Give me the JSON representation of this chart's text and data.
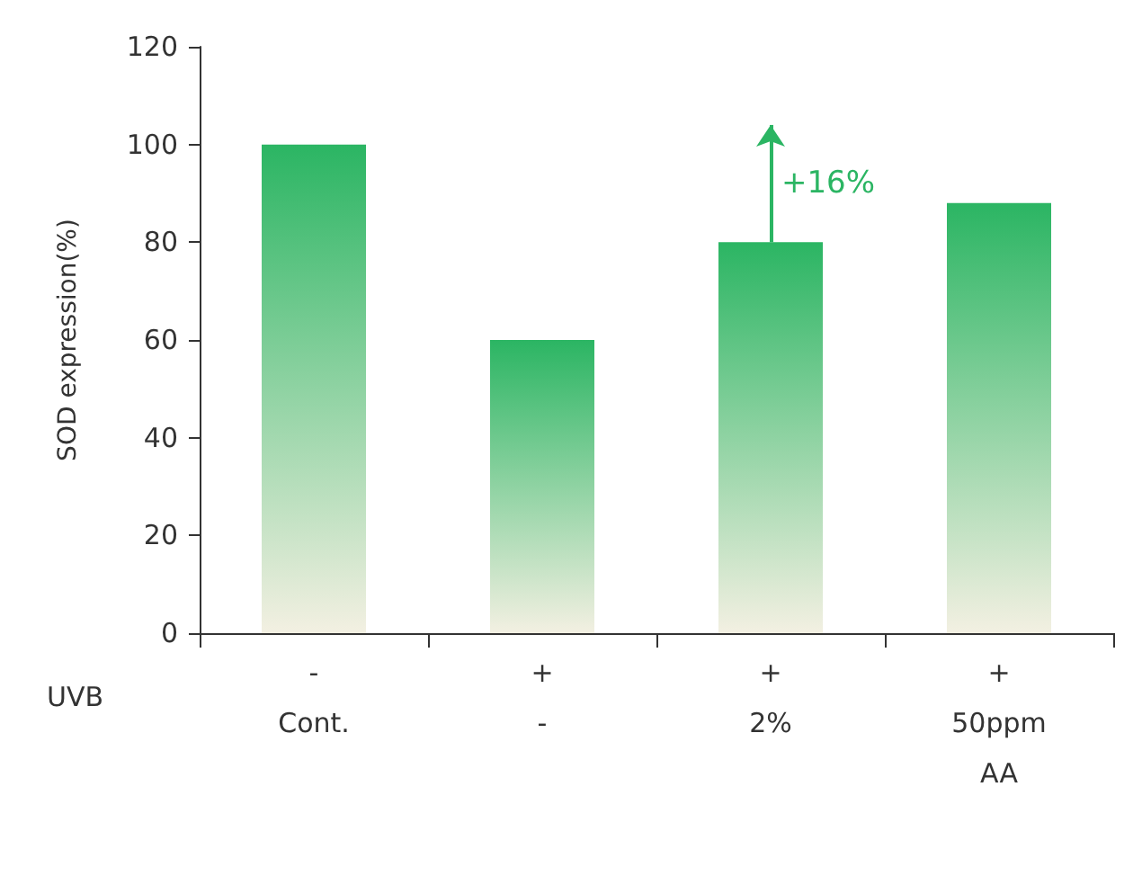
{
  "chart_data": {
    "type": "bar",
    "ylabel": "SOD expression(%)",
    "categories": [
      "-\nCont.",
      "+\n-",
      "+\n2%",
      "+\n50ppm\nAA"
    ],
    "values": [
      100,
      60,
      80,
      88
    ],
    "color": "#2bb563",
    "ylim": [
      0,
      120
    ],
    "yticks": [
      0,
      20,
      40,
      60,
      80,
      100,
      120
    ],
    "grid": false,
    "annotations": [
      "UVB",
      {
        "text": "+16%",
        "x": "+\n2%",
        "y": 80
      }
    ]
  }
}
